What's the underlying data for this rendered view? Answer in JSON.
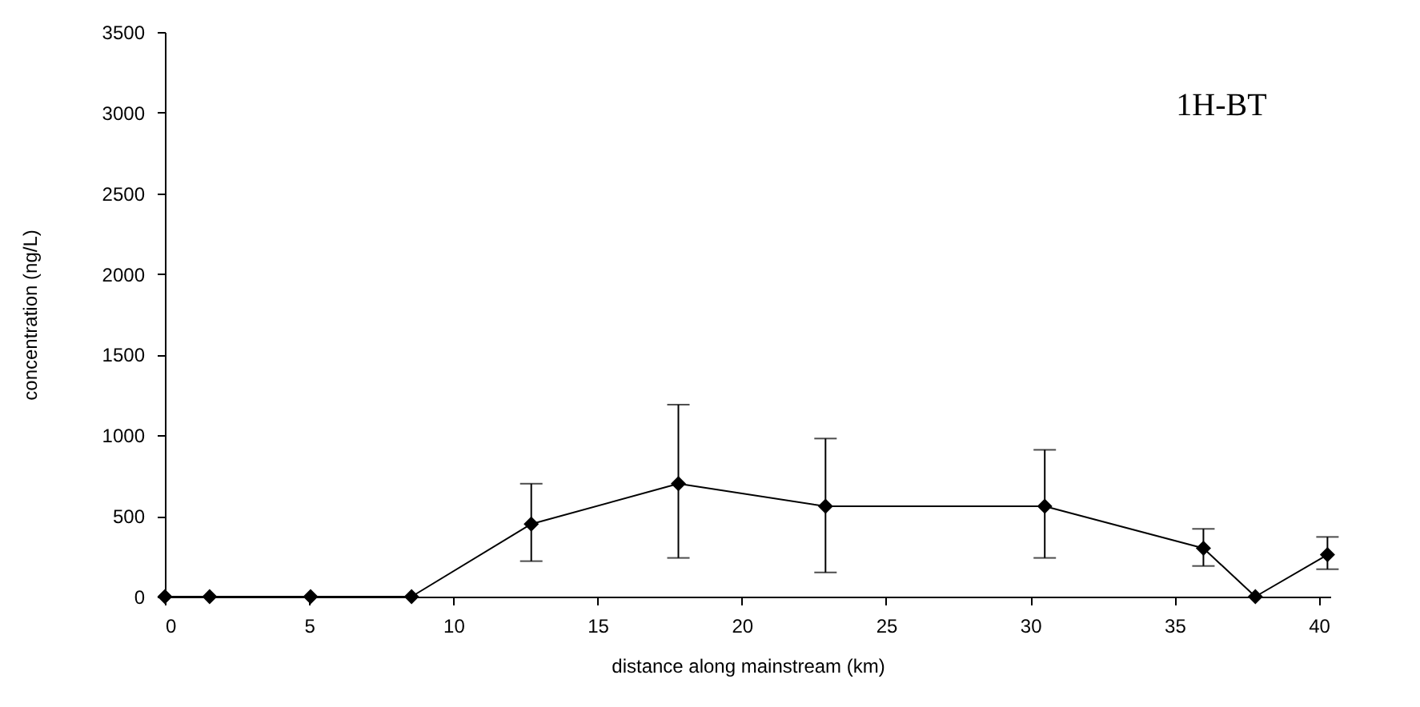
{
  "chart_data": {
    "type": "line",
    "xlabel": "distance along mainstream (km)",
    "ylabel": "concentration (ng/L)",
    "annotations": [
      "1H-BT"
    ],
    "x": [
      0,
      1.55,
      5.05,
      8.55,
      12.7,
      17.8,
      22.9,
      30.5,
      36.0,
      37.8,
      40.3
    ],
    "series": [
      {
        "color": "#000000",
        "values": [
          0,
          0,
          0,
          0,
          450,
          700,
          560,
          560,
          300,
          0,
          260
        ],
        "errors": [
          null,
          null,
          null,
          null,
          [
            220,
            700
          ],
          [
            240,
            1190
          ],
          [
            150,
            980
          ],
          [
            240,
            910
          ],
          [
            190,
            420
          ],
          null,
          [
            170,
            370
          ]
        ]
      }
    ],
    "xlim": [
      0,
      40.4
    ],
    "xticks": [
      0,
      5,
      10,
      15,
      20,
      25,
      30,
      35,
      40
    ],
    "ylim": [
      0,
      3500
    ],
    "yticks": [
      0,
      500,
      1000,
      1500,
      2000,
      2500,
      3000,
      3500
    ],
    "marker": "diamond",
    "line_style": "solid",
    "grid": false
  }
}
